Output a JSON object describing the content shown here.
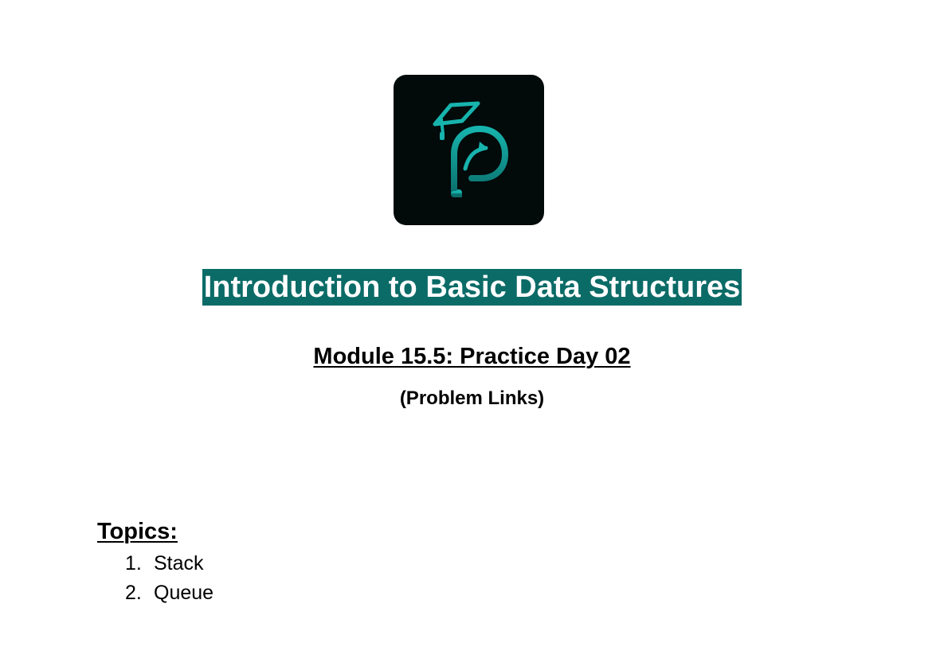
{
  "logo": {
    "icon": "graduation-cap-letter-p-icon",
    "background": "#020a0a",
    "accent": "#13a8a3"
  },
  "document": {
    "title": "Introduction to Basic Data Structures",
    "title_highlight": "#0b6b67",
    "subtitle": "Module 15.5: Practice Day 02",
    "note": "(Problem Links)",
    "topics": {
      "heading": "Topics:",
      "items": [
        {
          "number": "1.",
          "label": "Stack"
        },
        {
          "number": "2.",
          "label": "Queue"
        }
      ]
    }
  }
}
